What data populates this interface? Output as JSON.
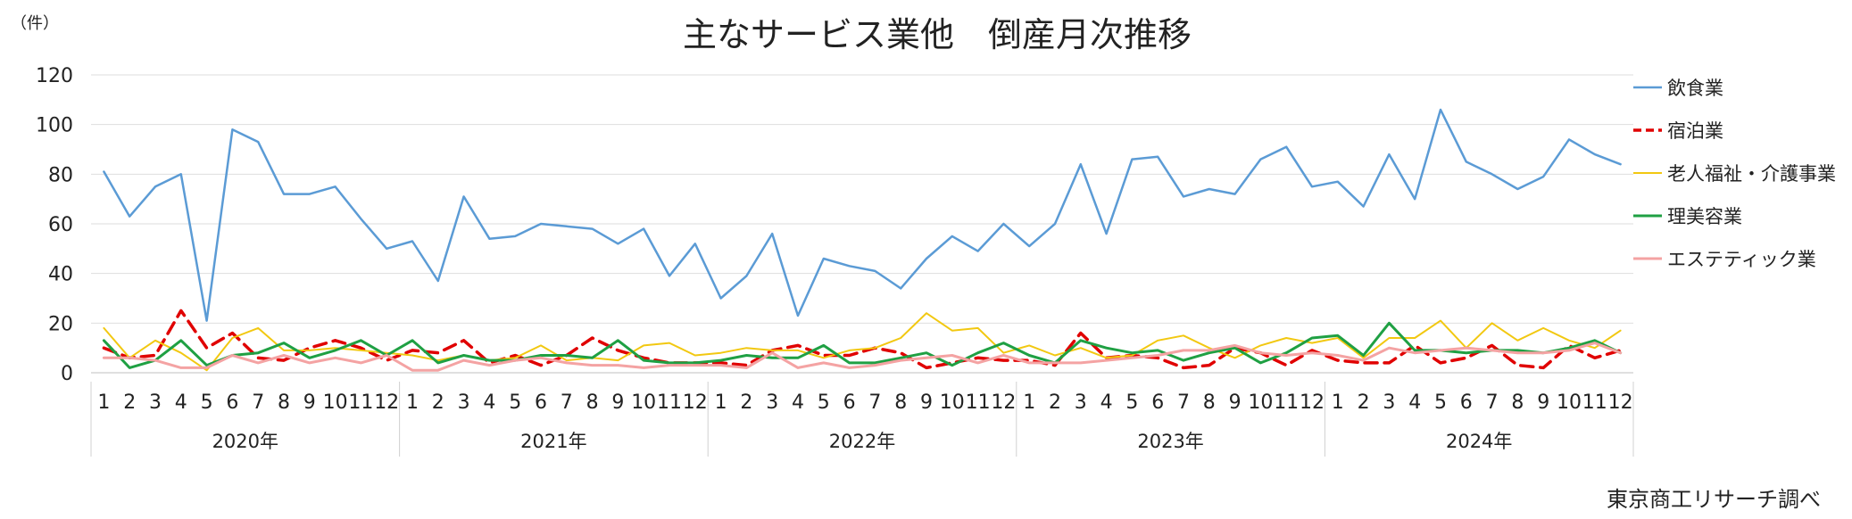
{
  "chart_data": {
    "type": "line",
    "title": "主なサービス業他　倒産月次推移",
    "yunit": "（件）",
    "source": "東京商工リサーチ調べ",
    "ylim": [
      0,
      120
    ],
    "yticks": [
      0,
      20,
      40,
      60,
      80,
      100,
      120
    ],
    "grid": true,
    "legend_position": "right",
    "years": [
      "2020年",
      "2021年",
      "2022年",
      "2023年",
      "2024年"
    ],
    "months": [
      "1",
      "2",
      "3",
      "4",
      "5",
      "6",
      "7",
      "8",
      "9",
      "10",
      "11",
      "12"
    ],
    "series": [
      {
        "name": "飲食業",
        "color": "#5B9BD5",
        "dash": "solid",
        "width": 2.5,
        "values": [
          81,
          63,
          75,
          80,
          21,
          98,
          93,
          72,
          72,
          75,
          62,
          50,
          53,
          37,
          71,
          54,
          55,
          60,
          59,
          58,
          52,
          58,
          39,
          52,
          30,
          39,
          56,
          23,
          46,
          43,
          41,
          34,
          46,
          55,
          49,
          60,
          51,
          60,
          84,
          56,
          86,
          87,
          71,
          74,
          72,
          86,
          91,
          75,
          77,
          67,
          88,
          70,
          106,
          85,
          80,
          74,
          79,
          94,
          88,
          84
        ]
      },
      {
        "name": "宿泊業",
        "color": "#E00000",
        "dash": "dashed",
        "width": 3.5,
        "values": [
          10,
          6,
          7,
          25,
          10,
          16,
          6,
          5,
          10,
          13,
          10,
          5,
          9,
          8,
          13,
          4,
          7,
          3,
          7,
          14,
          9,
          6,
          4,
          4,
          4,
          3,
          9,
          11,
          7,
          7,
          10,
          8,
          2,
          4,
          6,
          5,
          5,
          3,
          16,
          6,
          7,
          6,
          2,
          3,
          10,
          8,
          3,
          9,
          5,
          4,
          4,
          11,
          4,
          6,
          11,
          3,
          2,
          11,
          6,
          9
        ]
      },
      {
        "name": "老人福祉・介護事業",
        "color": "#F2C811",
        "dash": "solid",
        "width": 2,
        "values": [
          18,
          6,
          13,
          8,
          1,
          14,
          18,
          9,
          9,
          10,
          9,
          8,
          7,
          5,
          7,
          5,
          6,
          11,
          5,
          6,
          5,
          11,
          12,
          7,
          8,
          10,
          9,
          9,
          6,
          9,
          10,
          14,
          24,
          17,
          18,
          8,
          11,
          7,
          10,
          6,
          7,
          13,
          15,
          10,
          6,
          11,
          14,
          12,
          14,
          6,
          14,
          14,
          21,
          10,
          20,
          13,
          18,
          13,
          10,
          17
        ]
      },
      {
        "name": "理美容業",
        "color": "#1FA043",
        "dash": "solid",
        "width": 3,
        "values": [
          13,
          2,
          5,
          13,
          3,
          7,
          8,
          12,
          6,
          9,
          13,
          7,
          13,
          4,
          7,
          5,
          5,
          7,
          7,
          6,
          13,
          5,
          4,
          4,
          5,
          7,
          6,
          6,
          11,
          4,
          4,
          6,
          8,
          3,
          8,
          12,
          7,
          4,
          13,
          10,
          8,
          9,
          5,
          8,
          10,
          4,
          8,
          14,
          15,
          7,
          20,
          9,
          9,
          8,
          9,
          9,
          8,
          10,
          13,
          8
        ]
      },
      {
        "name": "エステティック業",
        "color": "#F4A3A3",
        "dash": "solid",
        "width": 3,
        "values": [
          6,
          6,
          5,
          2,
          2,
          7,
          4,
          7,
          4,
          6,
          4,
          7,
          1,
          1,
          5,
          3,
          5,
          6,
          4,
          3,
          3,
          2,
          3,
          3,
          3,
          2,
          8,
          2,
          4,
          2,
          3,
          5,
          6,
          7,
          4,
          7,
          4,
          4,
          4,
          5,
          6,
          7,
          9,
          9,
          11,
          8,
          7,
          8,
          7,
          5,
          10,
          8,
          9,
          10,
          9,
          8,
          8,
          9,
          12,
          8
        ]
      }
    ]
  }
}
